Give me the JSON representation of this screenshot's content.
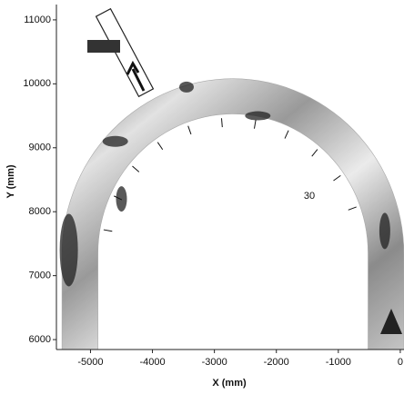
{
  "chart_data": {
    "type": "image",
    "xlabel": "X (mm)",
    "ylabel": "Y (mm)",
    "xlim": [
      -5550,
      60
    ],
    "ylim": [
      5845,
      11240
    ],
    "xticks": [
      -5000,
      -4000,
      -3000,
      -2000,
      -1000,
      0
    ],
    "yticks": [
      6000,
      7000,
      8000,
      9000,
      10000,
      11000
    ],
    "annotations": [
      "30"
    ]
  }
}
